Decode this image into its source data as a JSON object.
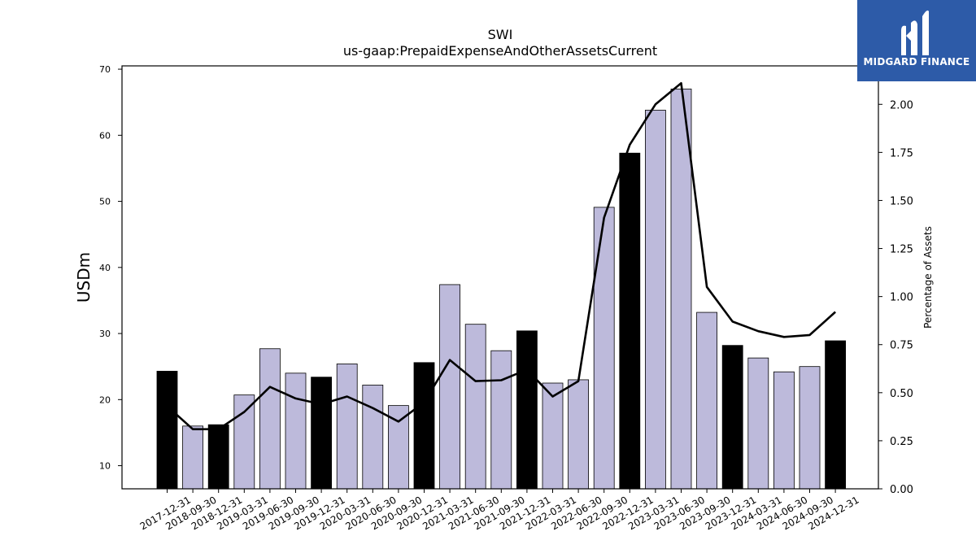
{
  "logo": {
    "text": "MIDGARD FINANCE",
    "background": "#2d5ba8"
  },
  "chart_data": {
    "type": "bar",
    "title": "SWI",
    "subtitle": "us-gaap:PrepaidExpenseAndOtherAssetsCurrent",
    "ylabel": "USDm",
    "y2label": "Percentage of Assets",
    "ylim": [
      6.5,
      70.5
    ],
    "y2lim": [
      0,
      2.2
    ],
    "yticks": [
      10,
      20,
      30,
      40,
      50,
      60,
      70
    ],
    "y2ticks": [
      "0.00",
      "0.25",
      "0.50",
      "0.75",
      "1.00",
      "1.25",
      "1.50",
      "1.75",
      "2.00"
    ],
    "categories": [
      "2017-12-31",
      "2018-09-30",
      "2018-12-31",
      "2019-03-31",
      "2019-06-30",
      "2019-09-30",
      "2019-12-31",
      "2020-03-31",
      "2020-06-30",
      "2020-09-30",
      "2020-12-31",
      "2021-03-31",
      "2021-06-30",
      "2021-09-30",
      "2021-12-31",
      "2022-03-31",
      "2022-06-30",
      "2022-09-30",
      "2022-12-31",
      "2023-03-31",
      "2023-06-30",
      "2023-09-30",
      "2023-12-31",
      "2024-03-31",
      "2024-06-30",
      "2024-09-30",
      "2024-12-31"
    ],
    "series": [
      {
        "type": "bar",
        "values": [
          24.3,
          16.0,
          16.2,
          20.7,
          27.7,
          24.0,
          23.4,
          25.4,
          22.2,
          19.1,
          25.6,
          37.4,
          31.4,
          27.4,
          30.4,
          22.5,
          23.0,
          49.1,
          57.3,
          63.8,
          67.0,
          33.2,
          28.2,
          26.3,
          24.2,
          25.0,
          28.9
        ],
        "annual_flags": [
          true,
          false,
          true,
          false,
          false,
          false,
          true,
          false,
          false,
          false,
          true,
          false,
          false,
          false,
          true,
          false,
          false,
          false,
          true,
          false,
          false,
          false,
          true,
          false,
          false,
          false,
          true
        ]
      },
      {
        "type": "line",
        "axis": "right",
        "values": [
          0.43,
          0.31,
          0.31,
          0.4,
          0.53,
          0.47,
          0.44,
          0.48,
          0.42,
          0.35,
          0.45,
          0.67,
          0.56,
          0.565,
          0.62,
          0.48,
          0.56,
          1.41,
          1.79,
          2.0,
          2.11,
          1.05,
          0.87,
          0.82,
          0.79,
          0.8,
          0.92
        ]
      }
    ],
    "colors": {
      "annual_bar": "#000000",
      "quarter_bar": "#bdbadb",
      "line": "#000000"
    },
    "grid": false,
    "legend": "none"
  }
}
